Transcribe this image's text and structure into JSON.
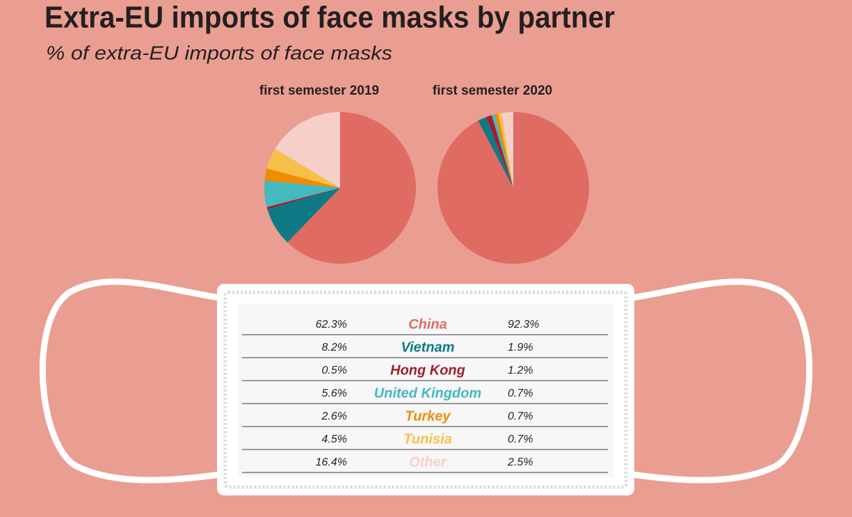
{
  "title": "Extra-EU imports of face masks by partner",
  "subtitle": "% of extra-EU imports of face masks",
  "chart_data": {
    "type": "pie",
    "categories": [
      "China",
      "Vietnam",
      "Hong Kong",
      "United Kingdom",
      "Turkey",
      "Tunisia",
      "Other"
    ],
    "colors": [
      "#e06b62",
      "#0e7a86",
      "#a01f2c",
      "#45b8c0",
      "#f08c00",
      "#f7c04a",
      "#f6d0c8"
    ],
    "series": [
      {
        "name": "first semester 2019",
        "values": [
          62.3,
          8.2,
          0.5,
          5.6,
          2.6,
          4.5,
          16.4
        ],
        "value_labels": [
          "62.3%",
          "8.2%",
          "0.5%",
          "5.6%",
          "2.6%",
          "4.5%",
          "16.4%"
        ]
      },
      {
        "name": "first semester 2020",
        "values": [
          92.3,
          1.9,
          1.2,
          0.7,
          0.7,
          0.7,
          2.5
        ],
        "value_labels": [
          "92.3%",
          "1.9%",
          "1.2%",
          "0.7%",
          "0.7%",
          "0.7%",
          "2.5%"
        ]
      }
    ]
  }
}
